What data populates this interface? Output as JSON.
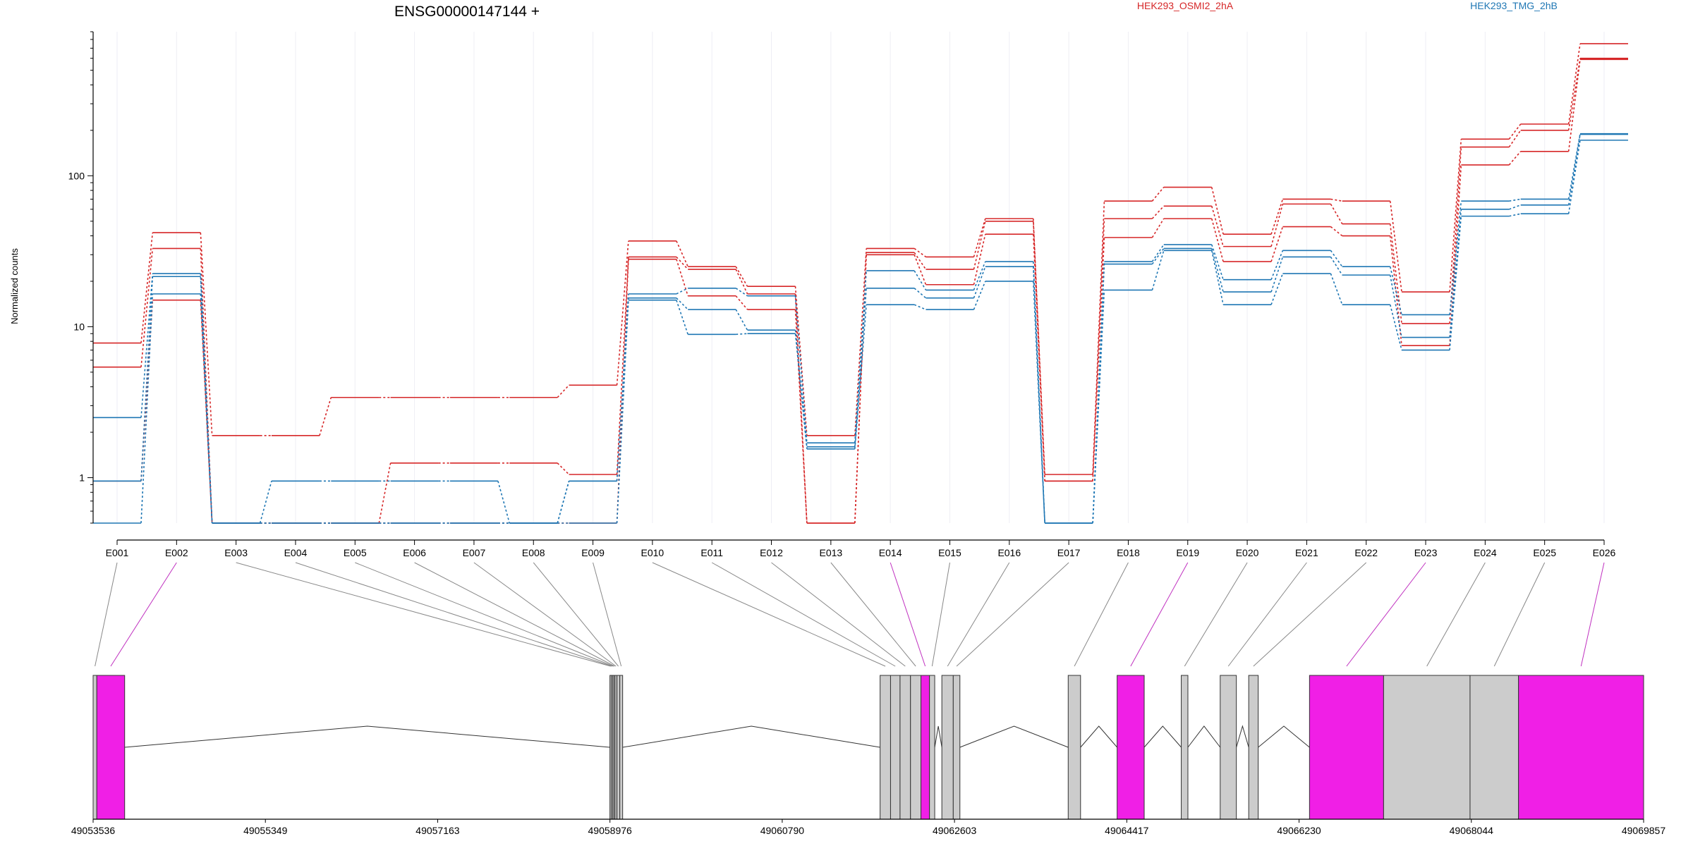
{
  "title": "ENSG00000147144 +",
  "legend": [
    {
      "label": "HEK293_OSMI2_2hA",
      "color": "#d62728"
    },
    {
      "label": "HEK293_TMG_2hB",
      "color": "#1f77b4"
    }
  ],
  "colors": {
    "exon_default": "#cccccc",
    "exon_highlight": "#f01fe6",
    "connector_default": "#888888",
    "connector_highlight": "#c030c0"
  },
  "chart_data": {
    "type": "line",
    "ylabel": "Normalized counts",
    "yscale": "log",
    "ylim": [
      0.5,
      900
    ],
    "yticks": [
      {
        "value": 1,
        "label": "1"
      },
      {
        "value": 10,
        "label": "10"
      },
      {
        "value": 100,
        "label": "100"
      }
    ],
    "categories": [
      "E001",
      "E002",
      "E003",
      "E004",
      "E005",
      "E006",
      "E007",
      "E008",
      "E009",
      "E010",
      "E011",
      "E012",
      "E013",
      "E014",
      "E015",
      "E016",
      "E017",
      "E018",
      "E019",
      "E020",
      "E021",
      "E022",
      "E023",
      "E024",
      "E025",
      "E026"
    ],
    "series": [
      {
        "group": "HEK293_OSMI2_2hA",
        "color": "#d62728",
        "values": [
          7.8,
          42,
          1.9,
          1.9,
          3.4,
          3.4,
          3.4,
          3.4,
          4.1,
          37,
          25,
          18.5,
          1.9,
          33,
          29,
          52,
          1.05,
          68,
          84,
          41,
          70,
          68,
          17,
          175,
          220,
          750
        ]
      },
      {
        "group": "HEK293_OSMI2_2hA",
        "color": "#d62728",
        "values": [
          5.4,
          33,
          0.5,
          0.5,
          0.5,
          1.25,
          1.25,
          1.25,
          1.05,
          29,
          24,
          16.5,
          0.5,
          31,
          24,
          50,
          0.95,
          52,
          63,
          34,
          65,
          48,
          10.5,
          155,
          200,
          600
        ]
      },
      {
        "group": "HEK293_OSMI2_2hA",
        "color": "#d62728",
        "values": [
          0.95,
          15,
          0.5,
          0.5,
          0.5,
          0.5,
          0.5,
          0.5,
          0.5,
          28,
          16,
          13,
          0.5,
          30,
          19,
          41,
          0.95,
          39,
          52,
          27,
          46,
          40,
          7.5,
          118,
          145,
          590
        ]
      },
      {
        "group": "HEK293_TMG_2hB",
        "color": "#1f77b4",
        "values": [
          2.5,
          22.5,
          0.5,
          0.95,
          0.95,
          0.95,
          0.95,
          0.5,
          0.95,
          16.5,
          18,
          16,
          1.7,
          23.5,
          17.5,
          27,
          0.5,
          27,
          35,
          20.5,
          32,
          25,
          12,
          68,
          70,
          190
        ]
      },
      {
        "group": "HEK293_TMG_2hB",
        "color": "#1f77b4",
        "values": [
          0.95,
          21.5,
          0.5,
          0.5,
          0.5,
          0.5,
          0.5,
          0.5,
          0.95,
          15.5,
          13,
          9.5,
          1.6,
          18,
          15.5,
          25,
          0.5,
          26,
          33,
          17,
          29,
          22,
          8.5,
          60,
          64,
          188
        ]
      },
      {
        "group": "HEK293_TMG_2hB",
        "color": "#1f77b4",
        "values": [
          0.5,
          16.5,
          0.5,
          0.5,
          0.5,
          0.5,
          0.5,
          0.5,
          0.5,
          15,
          8.9,
          9,
          1.55,
          14,
          13,
          20,
          0.5,
          17.5,
          32,
          14,
          22.5,
          14,
          7,
          54,
          56,
          172
        ]
      }
    ],
    "genomic_axis": {
      "range": [
        49053536,
        49069857
      ],
      "ticks": [
        "49053536",
        "49055349",
        "49057163",
        "49058976",
        "49060790",
        "49062603",
        "49064417",
        "49066230",
        "49068044",
        "49069857"
      ]
    },
    "exons": [
      {
        "id": "E001",
        "start": 49053536,
        "end": 49053575,
        "highlight": false
      },
      {
        "id": "E002",
        "start": 49053575,
        "end": 49053868,
        "highlight": true
      },
      {
        "id": "E003",
        "start": 49058976,
        "end": 49058990,
        "highlight": false
      },
      {
        "id": "E004",
        "start": 49058990,
        "end": 49059005,
        "highlight": false
      },
      {
        "id": "E005",
        "start": 49059005,
        "end": 49059018,
        "highlight": false
      },
      {
        "id": "E006",
        "start": 49059018,
        "end": 49059030,
        "highlight": false
      },
      {
        "id": "E007",
        "start": 49059030,
        "end": 49059050,
        "highlight": false
      },
      {
        "id": "E008",
        "start": 49059050,
        "end": 49059080,
        "highlight": false
      },
      {
        "id": "E009",
        "start": 49059080,
        "end": 49059110,
        "highlight": false
      },
      {
        "id": "E010",
        "start": 49061820,
        "end": 49061930,
        "highlight": false
      },
      {
        "id": "E011",
        "start": 49061930,
        "end": 49062030,
        "highlight": false
      },
      {
        "id": "E012",
        "start": 49062030,
        "end": 49062140,
        "highlight": false
      },
      {
        "id": "E013",
        "start": 49062140,
        "end": 49062250,
        "highlight": false
      },
      {
        "id": "E014",
        "start": 49062250,
        "end": 49062340,
        "highlight": true
      },
      {
        "id": "E015",
        "start": 49062340,
        "end": 49062395,
        "highlight": false
      },
      {
        "id": "E016",
        "start": 49062470,
        "end": 49062590,
        "highlight": false
      },
      {
        "id": "E017",
        "start": 49062590,
        "end": 49062660,
        "highlight": false
      },
      {
        "id": "E018",
        "start": 49063800,
        "end": 49063930,
        "highlight": false
      },
      {
        "id": "E019",
        "start": 49064315,
        "end": 49064600,
        "highlight": true
      },
      {
        "id": "E020",
        "start": 49064990,
        "end": 49065060,
        "highlight": false
      },
      {
        "id": "E021",
        "start": 49065400,
        "end": 49065570,
        "highlight": false
      },
      {
        "id": "E022",
        "start": 49065700,
        "end": 49065800,
        "highlight": false
      },
      {
        "id": "E023",
        "start": 49066340,
        "end": 49067120,
        "highlight": true
      },
      {
        "id": "E024",
        "start": 49067120,
        "end": 49068030,
        "highlight": false
      },
      {
        "id": "E025",
        "start": 49068030,
        "end": 49068540,
        "highlight": false
      },
      {
        "id": "E026",
        "start": 49068540,
        "end": 49069857,
        "highlight": true
      }
    ]
  }
}
